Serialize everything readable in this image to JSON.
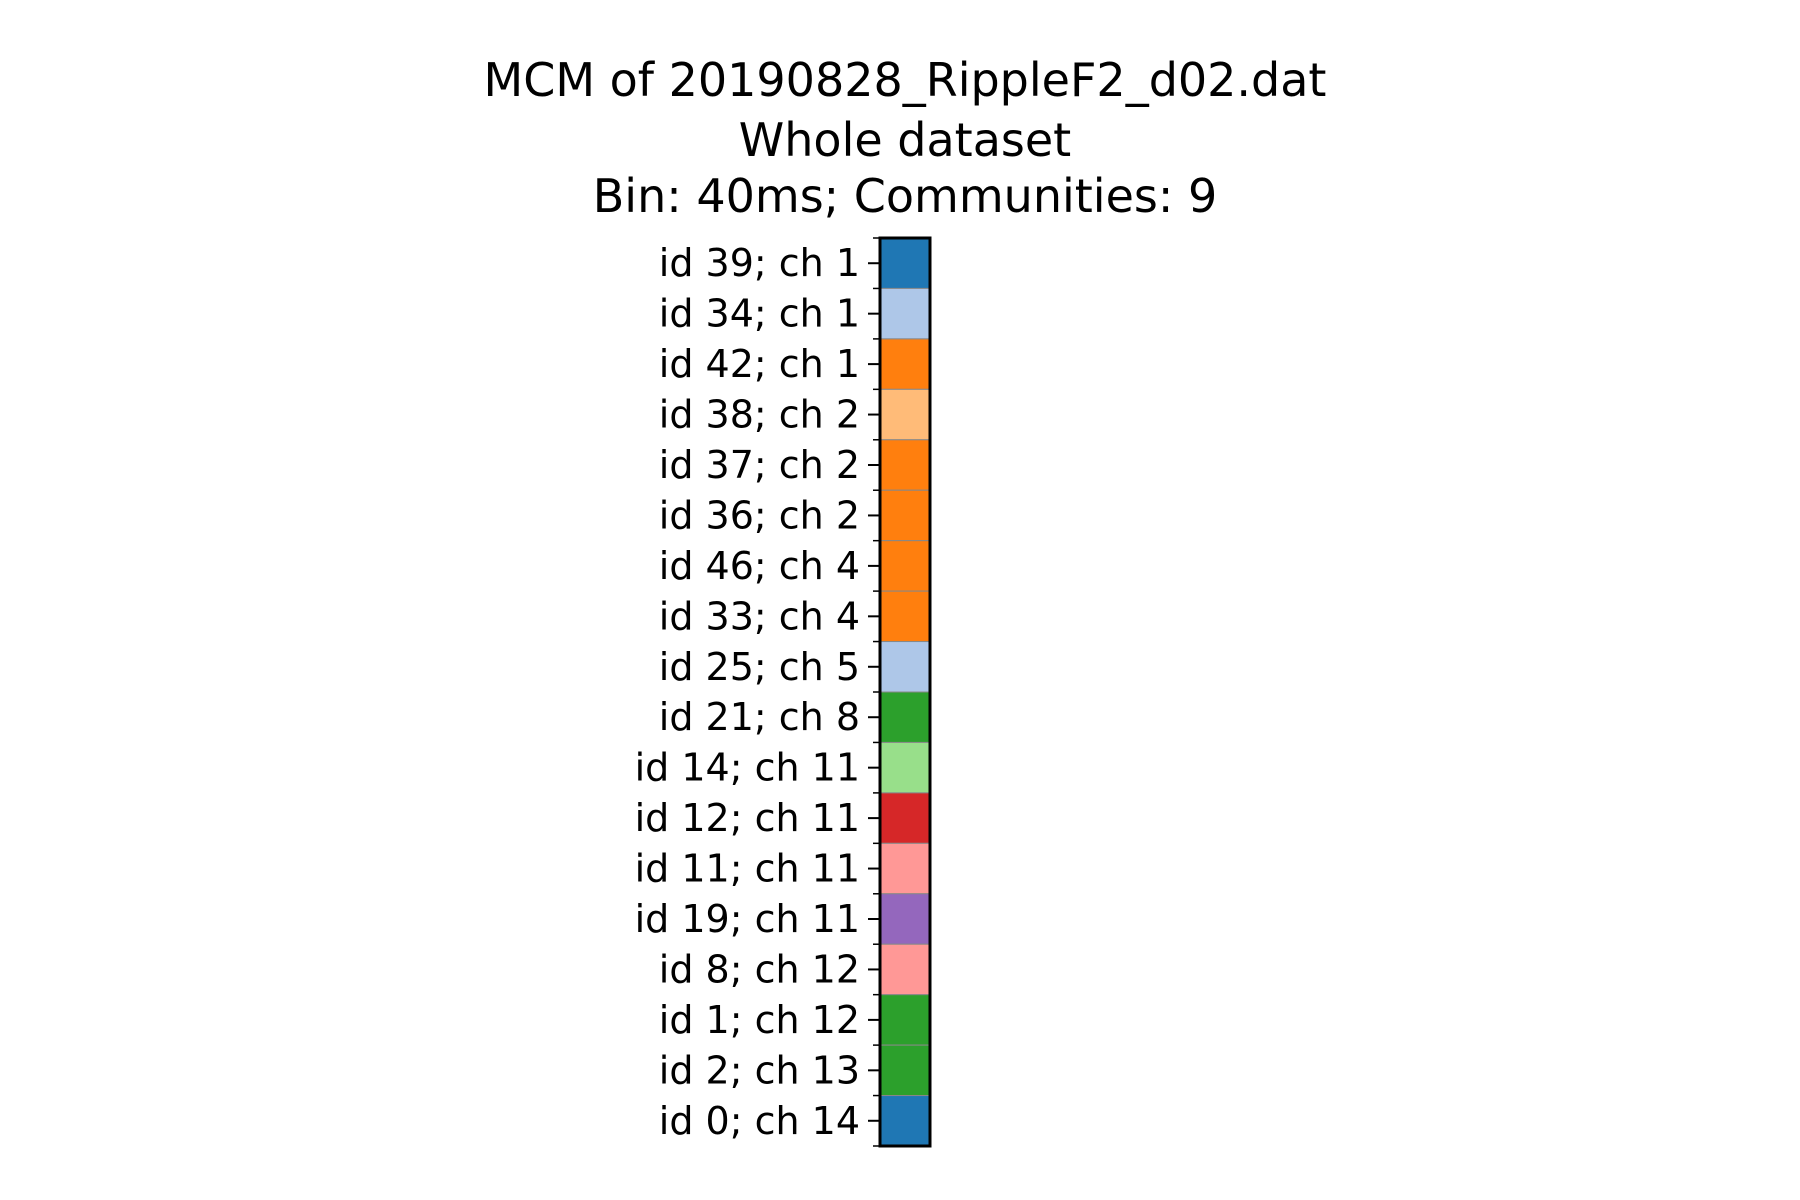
{
  "chart_data": {
    "type": "heatmap",
    "title": "MCM of 20190828_RippleF2_d02.dat",
    "subtitle_lines": [
      "Whole dataset",
      "Bin: 40ms; Communities: 9"
    ],
    "xlabel": "",
    "ylabel": "",
    "grid": false,
    "legend": "none",
    "rows": [
      {
        "label": "id 39; ch 1",
        "community_color": "#1f77b4"
      },
      {
        "label": "id 34; ch 1",
        "community_color": "#aec7e8"
      },
      {
        "label": "id 42; ch 1",
        "community_color": "#ff7f0e"
      },
      {
        "label": "id 38; ch 2",
        "community_color": "#ffbb78"
      },
      {
        "label": "id 37; ch 2",
        "community_color": "#ff7f0e"
      },
      {
        "label": "id 36; ch 2",
        "community_color": "#ff7f0e"
      },
      {
        "label": "id 46; ch 4",
        "community_color": "#ff7f0e"
      },
      {
        "label": "id 33; ch 4",
        "community_color": "#ff7f0e"
      },
      {
        "label": "id 25; ch 5",
        "community_color": "#aec7e8"
      },
      {
        "label": "id 21; ch 8",
        "community_color": "#2ca02c"
      },
      {
        "label": "id 14; ch 11",
        "community_color": "#98df8a"
      },
      {
        "label": "id 12; ch 11",
        "community_color": "#d62728"
      },
      {
        "label": "id 11; ch 11",
        "community_color": "#ff9896"
      },
      {
        "label": "id 19; ch 11",
        "community_color": "#9467bd"
      },
      {
        "label": "id 8; ch 12",
        "community_color": "#ff9896"
      },
      {
        "label": "id 1; ch 12",
        "community_color": "#2ca02c"
      },
      {
        "label": "id 2; ch 13",
        "community_color": "#2ca02c"
      },
      {
        "label": "id 0; ch 14",
        "community_color": "#1f77b4"
      }
    ]
  }
}
